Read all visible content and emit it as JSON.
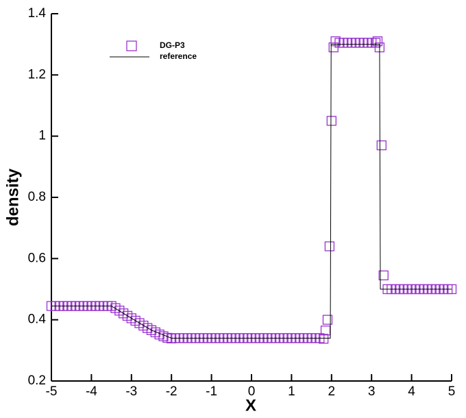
{
  "chart_data": {
    "type": "scatter",
    "xlabel": "X",
    "ylabel": "density",
    "xlim": [
      -5,
      5
    ],
    "xticks": [
      -5,
      -4,
      -3,
      -2,
      -1,
      0,
      1,
      2,
      3,
      4,
      5
    ],
    "ylim": [
      0.2,
      1.4
    ],
    "yticks": [
      0.2,
      0.4,
      0.6,
      0.8,
      1,
      1.2,
      1.4
    ],
    "legend": "upper left",
    "series": [
      {
        "name": "DG-P3",
        "color": "#9933cc",
        "marker": "square",
        "x": [
          -5,
          -4.9,
          -4.8,
          -4.7,
          -4.6,
          -4.5,
          -4.4,
          -4.3,
          -4.2,
          -4.1,
          -4,
          -3.9,
          -3.8,
          -3.7,
          -3.6,
          -3.5,
          -3.4,
          -3.3,
          -3.2,
          -3.1,
          -3,
          -2.9,
          -2.8,
          -2.7,
          -2.6,
          -2.5,
          -2.4,
          -2.3,
          -2.2,
          -2.1,
          -2,
          -1.9,
          -1.8,
          -1.7,
          -1.6,
          -1.5,
          -1.4,
          -1.3,
          -1.2,
          -1.1,
          -1,
          -0.9,
          -0.8,
          -0.7,
          -0.6,
          -0.5,
          -0.4,
          -0.3,
          -0.2,
          -0.1,
          0,
          0.1,
          0.2,
          0.3,
          0.4,
          0.5,
          0.6,
          0.7,
          0.8,
          0.9,
          1,
          1.1,
          1.2,
          1.3,
          1.4,
          1.5,
          1.6,
          1.7,
          1.8,
          1.85,
          1.9,
          1.95,
          2,
          2.05,
          2.1,
          2.2,
          2.3,
          2.4,
          2.5,
          2.6,
          2.7,
          2.8,
          2.9,
          3,
          3.1,
          3.15,
          3.2,
          3.25,
          3.3,
          3.4,
          3.5,
          3.6,
          3.7,
          3.8,
          3.9,
          4,
          4.1,
          4.2,
          4.3,
          4.4,
          4.5,
          4.6,
          4.7,
          4.8,
          4.9,
          5
        ],
        "values": [
          0.445,
          0.445,
          0.445,
          0.445,
          0.445,
          0.445,
          0.445,
          0.445,
          0.445,
          0.445,
          0.445,
          0.445,
          0.445,
          0.445,
          0.445,
          0.445,
          0.438,
          0.43,
          0.421,
          0.413,
          0.405,
          0.397,
          0.389,
          0.381,
          0.373,
          0.366,
          0.359,
          0.352,
          0.346,
          0.341,
          0.339,
          0.34,
          0.34,
          0.34,
          0.34,
          0.34,
          0.34,
          0.34,
          0.34,
          0.34,
          0.34,
          0.34,
          0.34,
          0.34,
          0.34,
          0.34,
          0.34,
          0.34,
          0.34,
          0.34,
          0.34,
          0.34,
          0.34,
          0.34,
          0.34,
          0.34,
          0.34,
          0.34,
          0.34,
          0.34,
          0.34,
          0.34,
          0.34,
          0.34,
          0.34,
          0.34,
          0.34,
          0.34,
          0.338,
          0.365,
          0.4,
          0.64,
          1.05,
          1.29,
          1.31,
          1.305,
          1.305,
          1.305,
          1.305,
          1.305,
          1.305,
          1.305,
          1.305,
          1.305,
          1.305,
          1.31,
          1.29,
          0.97,
          0.545,
          0.5,
          0.5,
          0.5,
          0.5,
          0.5,
          0.5,
          0.5,
          0.5,
          0.5,
          0.5,
          0.5,
          0.5,
          0.5,
          0.5,
          0.5,
          0.5,
          0.5
        ]
      },
      {
        "name": "reference",
        "color": "#000000",
        "marker": "line",
        "x": [
          -5,
          -3.5,
          -3,
          -2.5,
          -2,
          1.97,
          1.99,
          3.2,
          3.22,
          5
        ],
        "values": [
          0.445,
          0.445,
          0.405,
          0.366,
          0.34,
          0.34,
          1.3,
          1.3,
          0.5,
          0.5
        ]
      }
    ]
  }
}
